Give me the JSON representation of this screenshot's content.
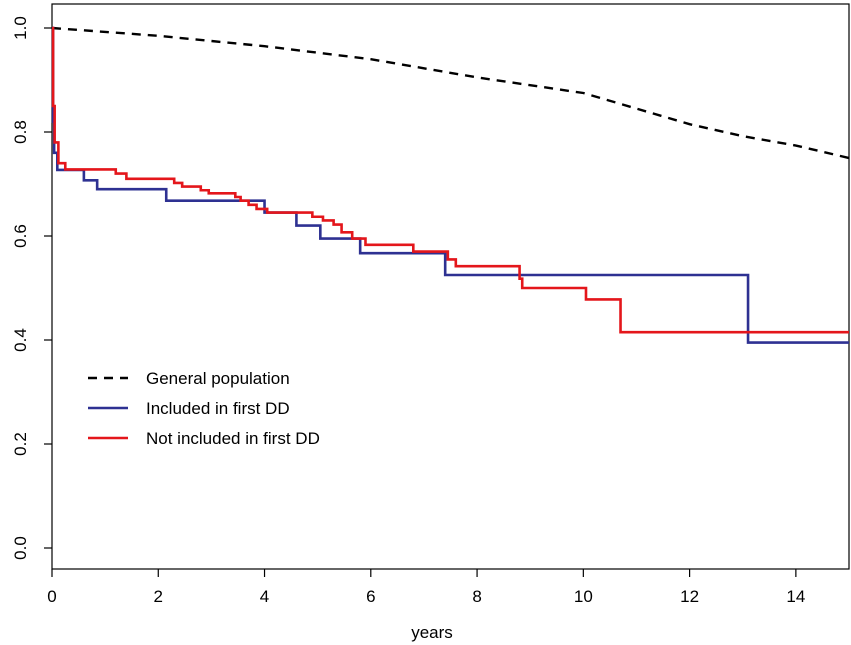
{
  "chart_data": {
    "type": "line",
    "title": "",
    "xlabel": "years",
    "ylabel": "",
    "xlim": [
      0,
      15
    ],
    "ylim": [
      0.0,
      1.0
    ],
    "x_ticks": [
      "0",
      "2",
      "4",
      "6",
      "8",
      "10",
      "12",
      "14"
    ],
    "y_ticks": [
      "0.0",
      "0.2",
      "0.4",
      "0.6",
      "0.8",
      "1.0"
    ],
    "grid": false,
    "legend_position": "center-left",
    "series": [
      {
        "name": "General population",
        "style": "dashed",
        "color": "#000000",
        "step": false,
        "points": [
          [
            0,
            1.0
          ],
          [
            2,
            0.985
          ],
          [
            4,
            0.965
          ],
          [
            6,
            0.94
          ],
          [
            8,
            0.905
          ],
          [
            10,
            0.875
          ],
          [
            12,
            0.815
          ],
          [
            13,
            0.792
          ],
          [
            14,
            0.774
          ],
          [
            15,
            0.75
          ]
        ]
      },
      {
        "name": "Included in first DD",
        "style": "solid",
        "color": "#2e3192",
        "step": true,
        "points": [
          [
            0,
            1.0
          ],
          [
            0.02,
            0.82
          ],
          [
            0.04,
            0.76
          ],
          [
            0.1,
            0.727
          ],
          [
            0.6,
            0.707
          ],
          [
            0.85,
            0.69
          ],
          [
            2.15,
            0.668
          ],
          [
            4.0,
            0.645
          ],
          [
            4.6,
            0.62
          ],
          [
            5.05,
            0.595
          ],
          [
            5.8,
            0.567
          ],
          [
            7.4,
            0.525
          ],
          [
            13.1,
            0.395
          ],
          [
            15,
            0.395
          ]
        ]
      },
      {
        "name": "Not included in first DD",
        "style": "solid",
        "color": "#e4161b",
        "step": true,
        "points": [
          [
            0,
            1.0
          ],
          [
            0.02,
            0.85
          ],
          [
            0.05,
            0.78
          ],
          [
            0.12,
            0.74
          ],
          [
            0.25,
            0.728
          ],
          [
            1.2,
            0.72
          ],
          [
            1.4,
            0.71
          ],
          [
            2.3,
            0.702
          ],
          [
            2.45,
            0.695
          ],
          [
            2.8,
            0.688
          ],
          [
            2.95,
            0.682
          ],
          [
            3.45,
            0.675
          ],
          [
            3.55,
            0.668
          ],
          [
            3.7,
            0.66
          ],
          [
            3.85,
            0.652
          ],
          [
            4.05,
            0.645
          ],
          [
            4.9,
            0.637
          ],
          [
            5.1,
            0.63
          ],
          [
            5.3,
            0.622
          ],
          [
            5.45,
            0.607
          ],
          [
            5.65,
            0.595
          ],
          [
            5.9,
            0.583
          ],
          [
            6.8,
            0.57
          ],
          [
            7.45,
            0.555
          ],
          [
            7.6,
            0.542
          ],
          [
            8.8,
            0.518
          ],
          [
            8.85,
            0.5
          ],
          [
            10.05,
            0.478
          ],
          [
            10.7,
            0.415
          ],
          [
            15,
            0.415
          ]
        ]
      }
    ]
  }
}
